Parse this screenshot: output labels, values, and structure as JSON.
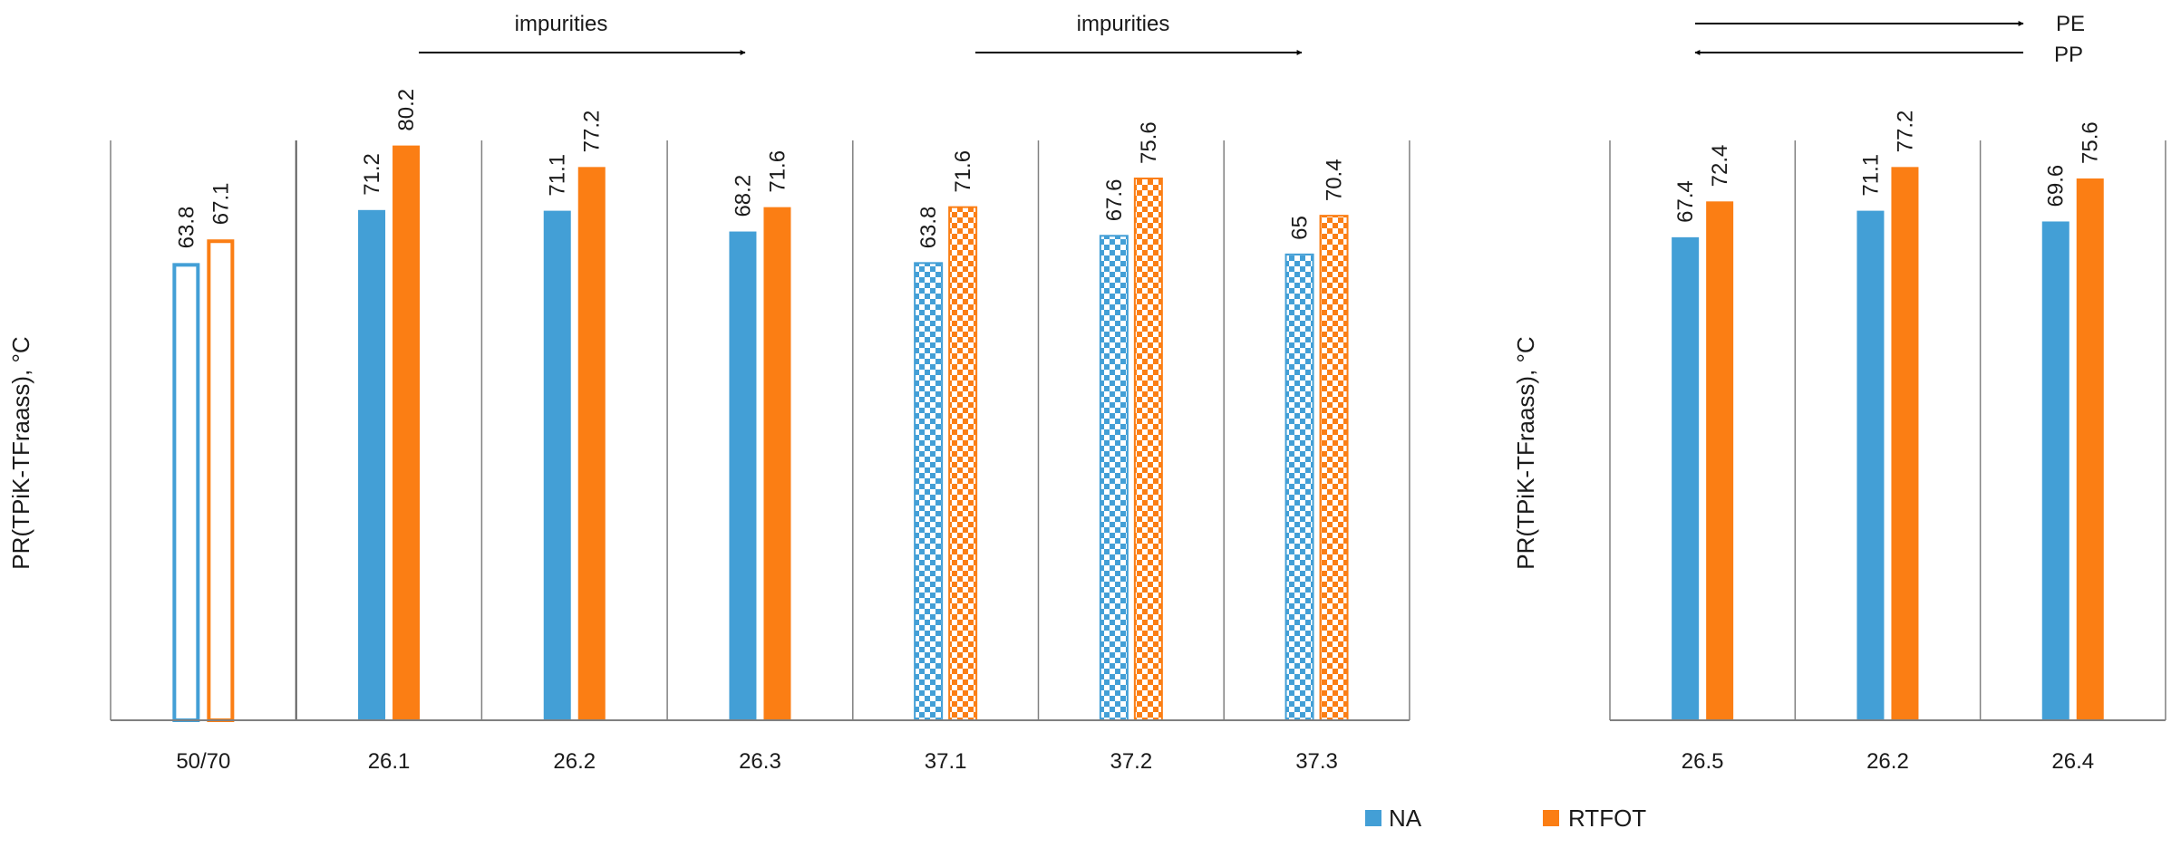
{
  "chart_data": [
    {
      "type": "bar",
      "title": "",
      "ylabel": "PR(TPiK-TFraass), °C",
      "xlabel": "",
      "ylim": [
        0,
        85
      ],
      "categories": [
        "50/70",
        "26.1",
        "26.2",
        "26.3",
        "37.1",
        "37.2",
        "37.3"
      ],
      "category_patterns": [
        "outline",
        "solid",
        "solid",
        "solid",
        "checkered",
        "checkered",
        "checkered"
      ],
      "series": [
        {
          "name": "NA",
          "values": [
            63.8,
            71.2,
            71.1,
            68.2,
            63.8,
            67.6,
            65
          ]
        },
        {
          "name": "RTFOT",
          "values": [
            67.1,
            80.2,
            77.2,
            71.6,
            71.6,
            75.6,
            70.4
          ]
        }
      ],
      "annotations": [
        {
          "text": "impurities",
          "direction": "right",
          "span": [
            "26.1",
            "26.3"
          ]
        },
        {
          "text": "impurities",
          "direction": "right",
          "span": [
            "37.1",
            "37.3"
          ]
        }
      ]
    },
    {
      "type": "bar",
      "title": "",
      "ylabel": "PR(TPiK-TFraass), °C",
      "xlabel": "",
      "ylim": [
        0,
        85
      ],
      "categories": [
        "26.5",
        "26.2",
        "26.4"
      ],
      "category_patterns": [
        "solid",
        "solid",
        "solid"
      ],
      "series": [
        {
          "name": "NA",
          "values": [
            67.4,
            71.1,
            69.6
          ]
        },
        {
          "name": "RTFOT",
          "values": [
            72.4,
            77.2,
            75.6
          ]
        }
      ],
      "annotations": [
        {
          "text": "PE",
          "direction": "right"
        },
        {
          "text": "PP",
          "direction": "left"
        }
      ]
    }
  ],
  "legend": {
    "placement": "bottom-center",
    "entries": [
      {
        "name": "NA",
        "color": "#439fd6"
      },
      {
        "name": "RTFOT",
        "color": "#fb7e14"
      }
    ]
  },
  "colors": {
    "na": "#439fd6",
    "rtfot": "#fb7e14",
    "axis": "#808080",
    "divider_strong": "#5a5a5a",
    "arrow": "#000000"
  }
}
